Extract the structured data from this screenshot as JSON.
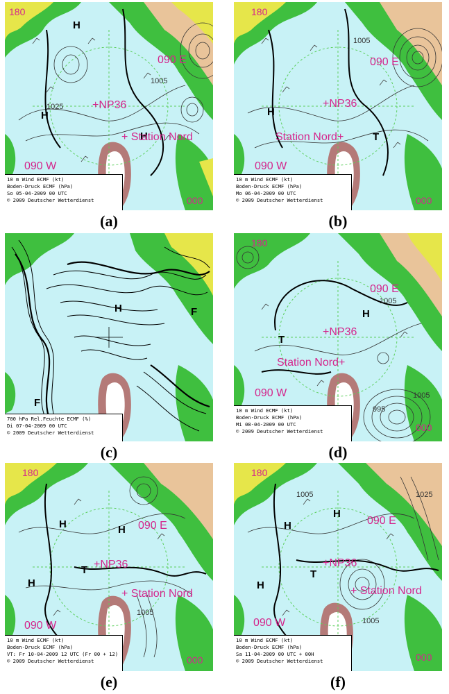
{
  "colors": {
    "sea_ice": "#c8f2f6",
    "land_green": "#3fbf3f",
    "land_yellow": "#e6e64a",
    "land_tan": "#e9c49a",
    "greenland_ice": "#ffffff",
    "greenland_rim": "#b47a78",
    "label_magenta": "#d4268c",
    "grid_green": "#5ccf5c"
  },
  "panels": [
    {
      "caption": "(a)",
      "labels": {
        "top_left": "180",
        "east": "090 E",
        "center": "+NP36",
        "station": "+ Station Nord",
        "west": "090 W",
        "bottom_right": "000"
      },
      "isobars": [
        "1005",
        "1025"
      ],
      "info": [
        "10 m Wind ECMF (kt)",
        "Boden-Druck ECMF (hPa)",
        "So 05-04-2009 00 UTC",
        "© 2009 Deutscher Wetterdienst"
      ]
    },
    {
      "caption": "(b)",
      "labels": {
        "top_left": "180",
        "east": "090 E",
        "center": "+NP36",
        "station": "Station Nord+",
        "west": "090 W",
        "bottom_right": "000"
      },
      "isobars": [
        "1005"
      ],
      "info": [
        "10 m Wind ECMF (kt)",
        "Boden-Druck ECMF (hPa)",
        "Mo 06-04-2009 00 UTC",
        "© 2009 Deutscher Wetterdienst"
      ]
    },
    {
      "caption": "(c)",
      "labels": {},
      "isobars": [],
      "info": [
        "700 hPa Rel.Feuchte ECMF (%)",
        "Di 07-04-2009 00 UTC",
        "© 2009 Deutscher Wetterdienst"
      ]
    },
    {
      "caption": "(d)",
      "labels": {
        "top_left": "180",
        "east": "090 E",
        "center": "+NP36",
        "station": "Station Nord+",
        "west": "090 W",
        "bottom_right": "000"
      },
      "isobars": [
        "1005",
        "1005",
        "995"
      ],
      "info": [
        "10 m Wind ECMF (kt)",
        "Boden-Druck ECMF (hPa)",
        "Mi 08-04-2009 00 UTC",
        "© 2009 Deutscher Wetterdienst"
      ]
    },
    {
      "caption": "(e)",
      "labels": {
        "top_left": "180",
        "east": "090 E",
        "center": "+NP36",
        "station": "+ Station Nord",
        "west": "090 W",
        "bottom_right": "000"
      },
      "isobars": [
        "1005"
      ],
      "info": [
        "10 m Wind ECMF (kt)",
        "Boden-Druck ECMF (hPa)",
        "VT: Fr 10-04-2009 12 UTC (Fr 00 + 12)",
        "© 2009 Deutscher Wetterdienst"
      ]
    },
    {
      "caption": "(f)",
      "labels": {
        "top_left": "180",
        "east": "090 E",
        "center": "+NP36",
        "station": "+ Station Nord",
        "west": "090 W",
        "bottom_right": "000"
      },
      "isobars": [
        "1005",
        "1025",
        "1005"
      ],
      "info": [
        "10 m Wind ECMF (kt)",
        "Boden-Druck ECMF (hPa)",
        "Sa 11-04-2009 00 UTC + 00H",
        "© 2009 Deutscher Wetterdienst"
      ]
    }
  ]
}
